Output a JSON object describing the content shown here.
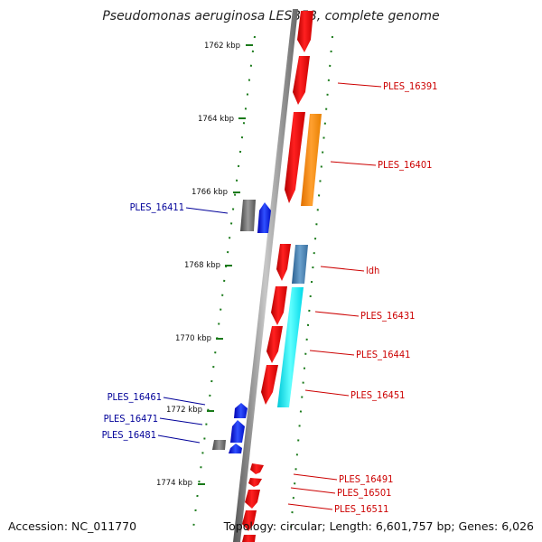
{
  "title": "Pseudomonas aeruginosa LESB58, complete genome",
  "footer": {
    "accession": "Accession: NC_011770",
    "info": "Topology: circular; Length: 6,601,757 bp; Genes: 6,026"
  },
  "colors": {
    "forward_label": "#cc0000",
    "reverse_label": "#000099",
    "scale_dots": "#1a7a1a",
    "backbone": "#888888"
  },
  "scale_labels": [
    "1762 kbp",
    "1764 kbp",
    "1766 kbp",
    "1768 kbp",
    "1770 kbp",
    "1772 kbp",
    "1774 kbp"
  ],
  "gene_labels": {
    "right": [
      "PLES_16391",
      "PLES_16401",
      "ldh",
      "PLES_16431",
      "PLES_16441",
      "PLES_16451",
      "PLES_16491",
      "PLES_16501",
      "PLES_16511"
    ],
    "left": [
      "PLES_16411",
      "PLES_16461",
      "PLES_16471",
      "PLES_16481"
    ]
  }
}
